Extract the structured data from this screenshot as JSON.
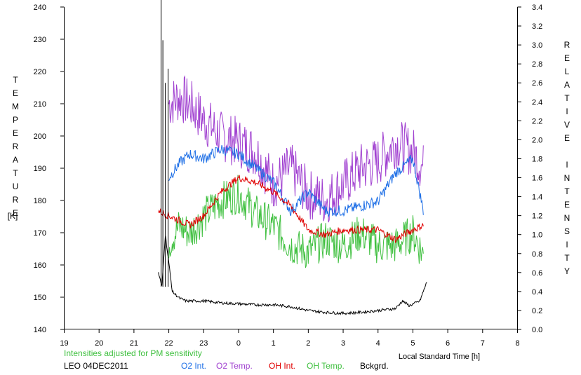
{
  "chart_data": {
    "type": "line",
    "left_axis_label": "TEMPERATURE",
    "left_axis_unit": "[K]",
    "right_axis_label": "RELATIVE INTENSITY",
    "xlabel": "Local Standard Time [h]",
    "note": "Intensities adjusted for PM sensitivity",
    "station": "LEO 04DEC2011",
    "x_ticks": [
      "19",
      "20",
      "21",
      "22",
      "23",
      "0",
      "1",
      "2",
      "3",
      "4",
      "5",
      "6",
      "7",
      "8"
    ],
    "y_left_ticks": [
      "140",
      "150",
      "160",
      "170",
      "180",
      "190",
      "200",
      "210",
      "220",
      "230",
      "240"
    ],
    "y_right_ticks": [
      "0.0",
      "0.2",
      "0.4",
      "0.6",
      "0.8",
      "1.0",
      "1.2",
      "1.4",
      "1.6",
      "1.8",
      "2.0",
      "2.2",
      "2.4",
      "2.6",
      "2.8",
      "3.0",
      "3.2",
      "3.4"
    ],
    "ylim_left": [
      140,
      240
    ],
    "ylim_right": [
      0,
      3.4
    ],
    "xlim_hours_from_19": [
      0,
      13
    ],
    "grid": false,
    "series": [
      {
        "name": "O2 Int.",
        "color": "#1e6fe6",
        "axis": "right",
        "x": [
          3.0,
          3.3,
          3.6,
          4.0,
          4.5,
          5.0,
          5.5,
          6.0,
          6.5,
          7.0,
          7.5,
          8.0,
          8.5,
          9.0,
          9.5,
          10.0,
          10.3
        ],
        "y": [
          1.6,
          1.75,
          1.85,
          1.8,
          1.9,
          1.85,
          1.7,
          1.55,
          1.25,
          1.45,
          1.25,
          1.25,
          1.3,
          1.35,
          1.65,
          1.8,
          1.25
        ]
      },
      {
        "name": "O2 Temp.",
        "color": "#a040d0",
        "axis": "left",
        "x": [
          3.0,
          3.3,
          3.6,
          4.0,
          4.5,
          5.0,
          5.5,
          6.0,
          6.5,
          7.0,
          7.5,
          8.0,
          8.5,
          9.0,
          9.5,
          10.0,
          10.3
        ],
        "y": [
          210,
          212,
          210,
          205,
          200,
          198,
          195,
          185,
          190,
          182,
          180,
          185,
          190,
          192,
          198,
          195,
          190
        ]
      },
      {
        "name": "OH Int.",
        "color": "#e00000",
        "axis": "right",
        "x": [
          2.7,
          3.0,
          3.3,
          3.6,
          4.0,
          4.5,
          5.0,
          5.5,
          6.0,
          6.5,
          7.0,
          7.5,
          8.0,
          8.5,
          9.0,
          9.5,
          10.0,
          10.3
        ],
        "y": [
          1.25,
          1.2,
          1.15,
          1.1,
          1.2,
          1.45,
          1.6,
          1.55,
          1.45,
          1.3,
          1.05,
          1.0,
          1.05,
          1.05,
          1.05,
          0.95,
          1.05,
          1.1
        ]
      },
      {
        "name": "OH Temp.",
        "color": "#40c040",
        "axis": "left",
        "x": [
          3.0,
          3.3,
          3.6,
          4.0,
          4.5,
          5.0,
          5.5,
          6.0,
          6.5,
          7.0,
          7.5,
          8.0,
          8.5,
          9.0,
          9.5,
          10.0,
          10.3
        ],
        "y": [
          167,
          172,
          170,
          175,
          180,
          182,
          176,
          172,
          166,
          164,
          168,
          166,
          170,
          166,
          166,
          170,
          163
        ]
      },
      {
        "name": "Bckgrd.",
        "color": "#000000",
        "axis": "right",
        "x": [
          2.7,
          2.8,
          2.9,
          3.0,
          3.1,
          3.3,
          3.5,
          4.0,
          4.5,
          5.0,
          5.5,
          6.0,
          6.5,
          7.0,
          7.5,
          8.0,
          8.5,
          9.0,
          9.5,
          9.7,
          9.9,
          10.2,
          10.4
        ],
        "y": [
          0.6,
          0.45,
          1.0,
          0.7,
          0.4,
          0.33,
          0.3,
          0.3,
          0.28,
          0.27,
          0.26,
          0.26,
          0.24,
          0.2,
          0.18,
          0.17,
          0.18,
          0.2,
          0.22,
          0.3,
          0.25,
          0.3,
          0.5
        ]
      }
    ]
  }
}
